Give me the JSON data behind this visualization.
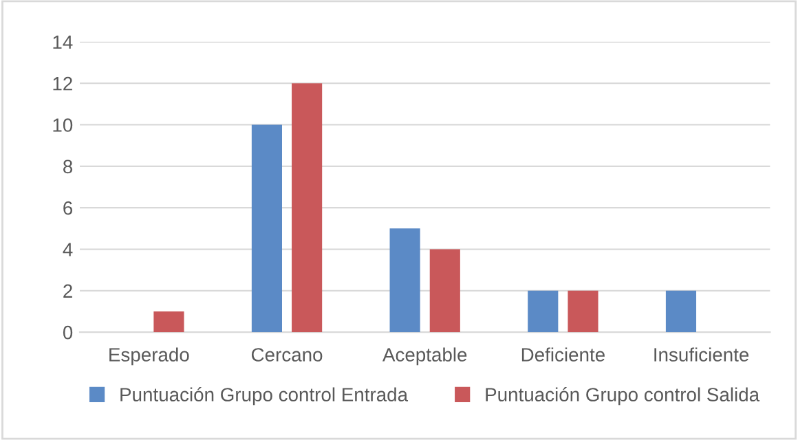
{
  "chart_data": {
    "type": "bar",
    "categories": [
      "Esperado",
      "Cercano",
      "Aceptable",
      "Deficiente",
      "Insuficiente"
    ],
    "series": [
      {
        "name": "Puntuación Grupo control Entrada",
        "color": "#5b8ac6",
        "values": [
          0,
          10,
          5,
          2,
          2
        ]
      },
      {
        "name": "Puntuación Grupo control Salida",
        "color": "#c9585a",
        "values": [
          1,
          12,
          4,
          2,
          0
        ]
      }
    ],
    "ylim": [
      0,
      14
    ],
    "yticks": [
      0,
      2,
      4,
      6,
      8,
      10,
      12,
      14
    ],
    "grid": "y",
    "legend": "bottom"
  }
}
